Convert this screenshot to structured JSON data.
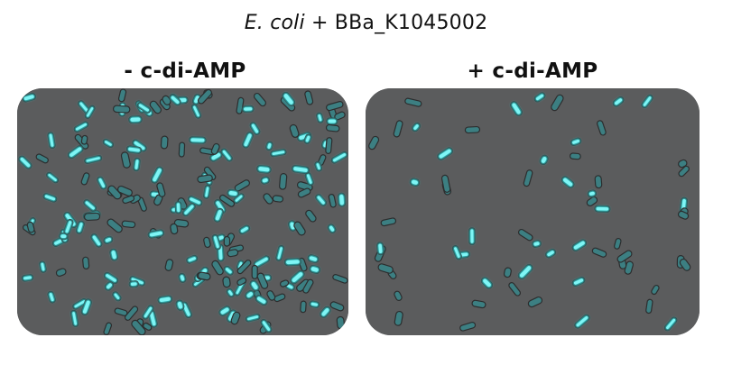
{
  "figure": {
    "title_italic": "E. coli",
    "title_rest": " + BBa_K1045002",
    "panels": [
      {
        "label": "- c-di-AMP",
        "fluorescence_color": "#35e6e6"
      },
      {
        "label": "+ c-di-AMP",
        "fluorescence_color": "#35e6e6"
      }
    ],
    "background_color": "#5b5c5d"
  }
}
